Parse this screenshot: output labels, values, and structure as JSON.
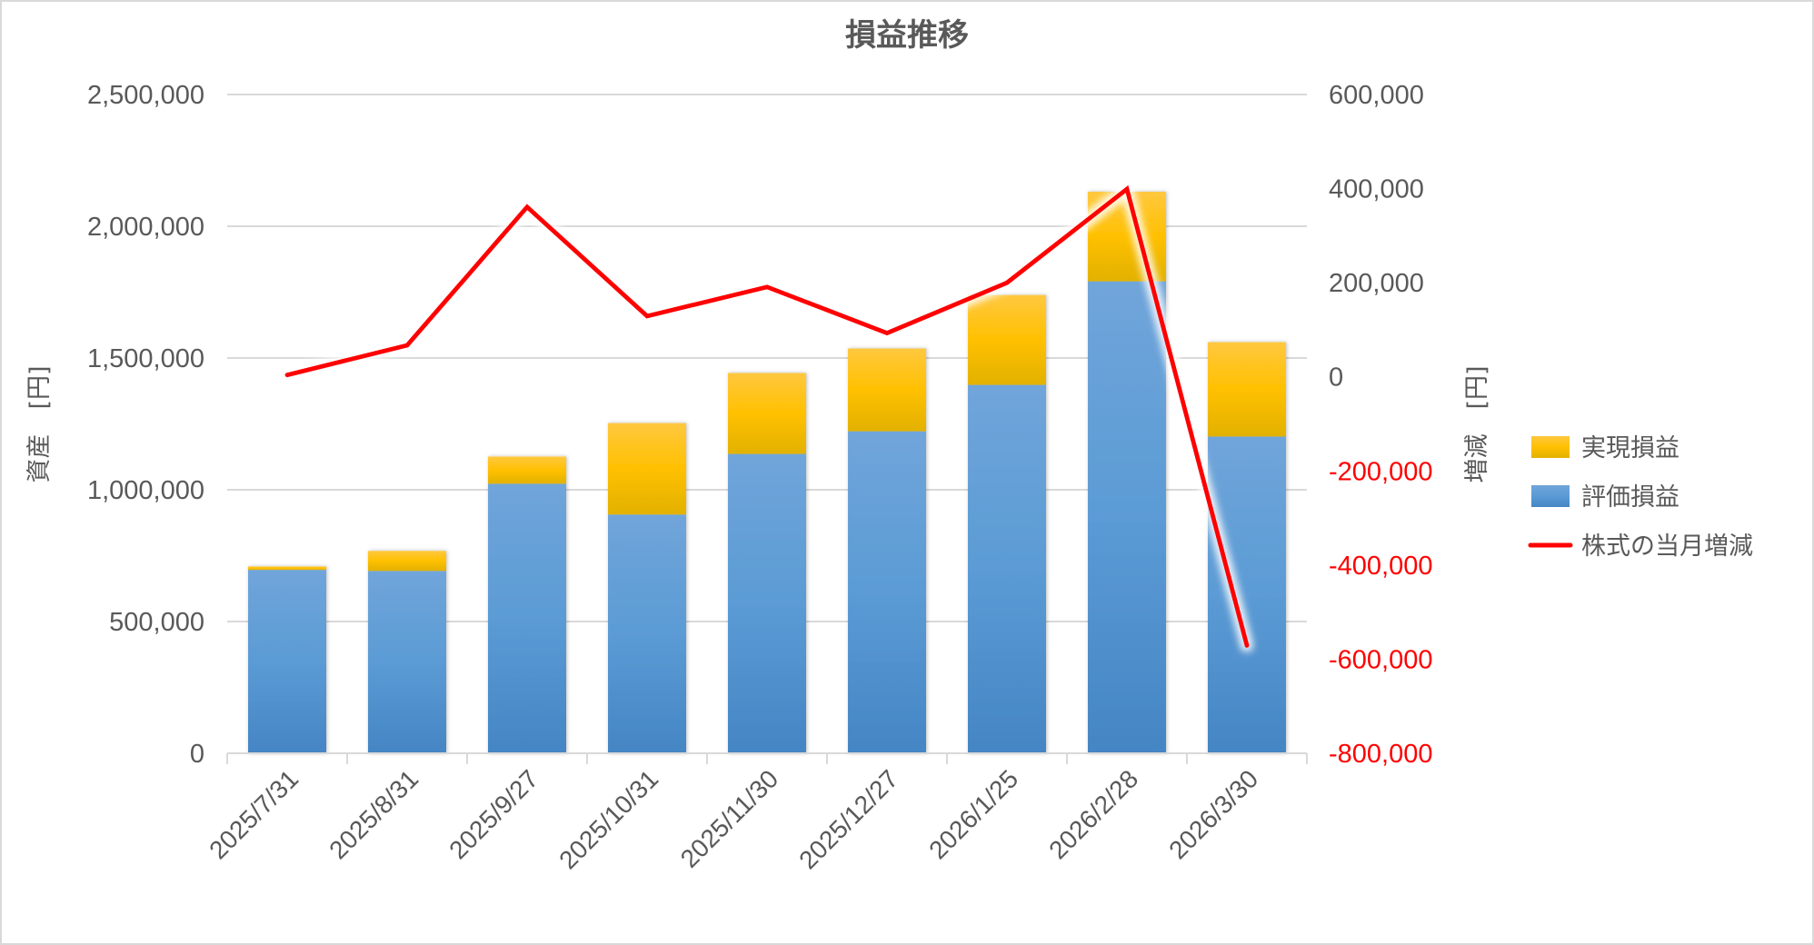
{
  "chart_data": {
    "type": "bar",
    "subtype": "stacked-bar-with-line-secondary-axis",
    "title": "損益推移",
    "categories": [
      "2025/7/31",
      "2025/8/31",
      "2025/9/27",
      "2025/10/31",
      "2025/11/30",
      "2025/12/27",
      "2026/1/25",
      "2026/2/28",
      "2026/3/30"
    ],
    "series": [
      {
        "name": "評価損益",
        "type": "bar",
        "axis": "left",
        "stack": "assets",
        "color": "#5B9BD5",
        "values": [
          696000,
          692000,
          1023000,
          906000,
          1136000,
          1222000,
          1398000,
          1791000,
          1202000
        ]
      },
      {
        "name": "実現損益",
        "type": "bar",
        "axis": "left",
        "stack": "assets",
        "color": "#FFC000",
        "values": [
          13000,
          76000,
          103000,
          347000,
          307000,
          314000,
          341000,
          340000,
          358000
        ]
      },
      {
        "name": "株式の当月増減",
        "type": "line",
        "axis": "right",
        "color": "#FF0000",
        "values": [
          4000,
          67000,
          361000,
          129000,
          191000,
          93000,
          200000,
          399000,
          -571000
        ]
      }
    ],
    "xlabel": "",
    "ylabel": "資産　[円]",
    "ylabel_right": "増減　[円]",
    "ylim": [
      0,
      2500000
    ],
    "ylim_right": [
      -800000,
      600000
    ],
    "yticks": [
      0,
      500000,
      1000000,
      1500000,
      2000000,
      2500000
    ],
    "yticks_labels": [
      "0",
      "500,000",
      "1,000,000",
      "1,500,000",
      "2,000,000",
      "2,500,000"
    ],
    "yticks_right": [
      -800000,
      -600000,
      -400000,
      -200000,
      0,
      200000,
      400000,
      600000
    ],
    "yticks_right_labels": [
      "-800,000",
      "-600,000",
      "-400,000",
      "-200,000",
      "0",
      "200,000",
      "400,000",
      "600,000"
    ],
    "negative_tick_color": "#FF0000",
    "grid": true,
    "legend_position": "right",
    "legend": [
      {
        "label": "実現損益",
        "marker": "box",
        "color": "#FFC000"
      },
      {
        "label": "評価損益",
        "marker": "box",
        "color": "#5B9BD5"
      },
      {
        "label": "株式の当月増減",
        "marker": "line",
        "color": "#FF0000"
      }
    ],
    "x_label_rotation": -45
  }
}
